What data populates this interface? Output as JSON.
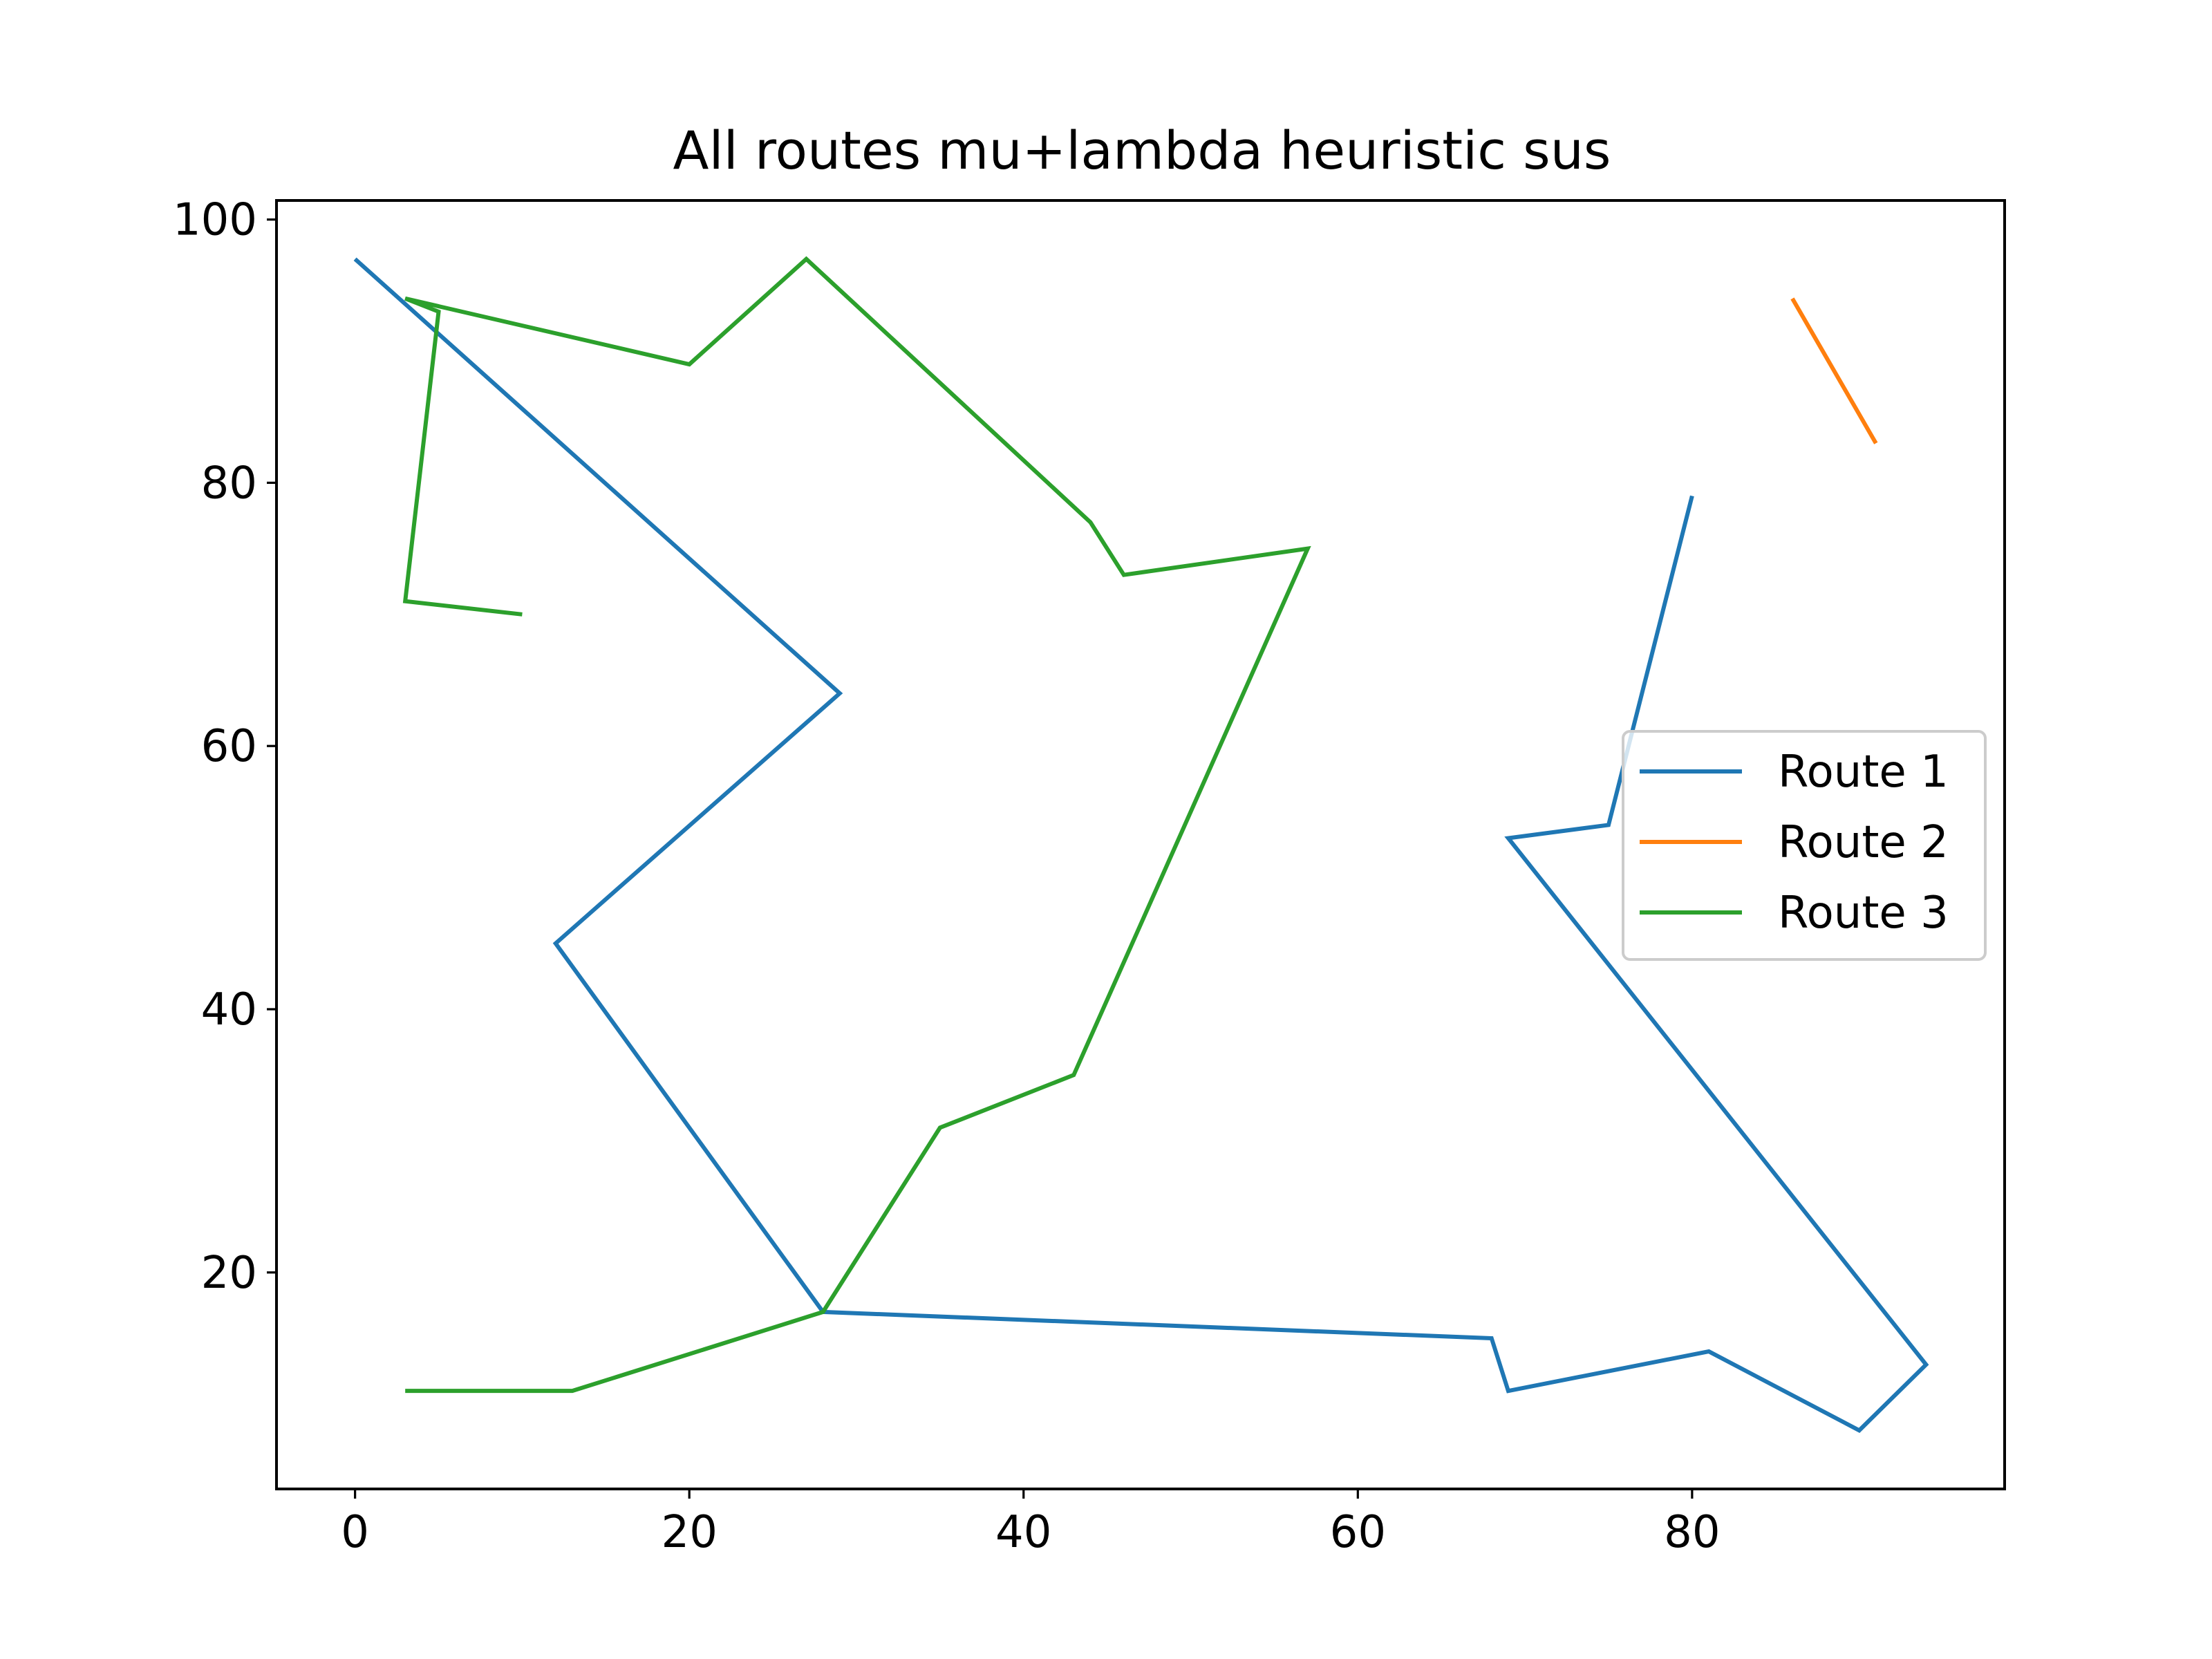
{
  "chart_data": {
    "type": "line",
    "title": "All routes mu+lambda heuristic sus",
    "xlabel": "",
    "ylabel": "",
    "xlim": [
      -4.7,
      98.7
    ],
    "ylim": [
      3.55,
      101.45
    ],
    "xticks": [
      0,
      20,
      40,
      60,
      80
    ],
    "yticks": [
      20,
      40,
      60,
      80,
      100
    ],
    "grid": false,
    "legend_position": "center-right",
    "series": [
      {
        "name": "Route 1",
        "color": "#1f77b4",
        "points": [
          [
            0,
            97
          ],
          [
            29,
            64
          ],
          [
            12,
            45
          ],
          [
            28,
            17
          ],
          [
            68,
            15
          ],
          [
            69,
            11
          ],
          [
            81,
            14
          ],
          [
            90,
            8
          ],
          [
            94,
            13
          ],
          [
            69,
            53
          ],
          [
            75,
            54
          ],
          [
            80,
            79
          ]
        ]
      },
      {
        "name": "Route 2",
        "color": "#ff7f0e",
        "points": [
          [
            86,
            94
          ],
          [
            91,
            83
          ]
        ]
      },
      {
        "name": "Route 3",
        "color": "#2ca02c",
        "points": [
          [
            10,
            70
          ],
          [
            3,
            71
          ],
          [
            5,
            93
          ],
          [
            3,
            94
          ],
          [
            20,
            89
          ],
          [
            27,
            97
          ],
          [
            44,
            77
          ],
          [
            46,
            73
          ],
          [
            57,
            75
          ],
          [
            43,
            35
          ],
          [
            35,
            31
          ],
          [
            28,
            17
          ],
          [
            13,
            11
          ],
          [
            3,
            11
          ]
        ]
      }
    ]
  }
}
